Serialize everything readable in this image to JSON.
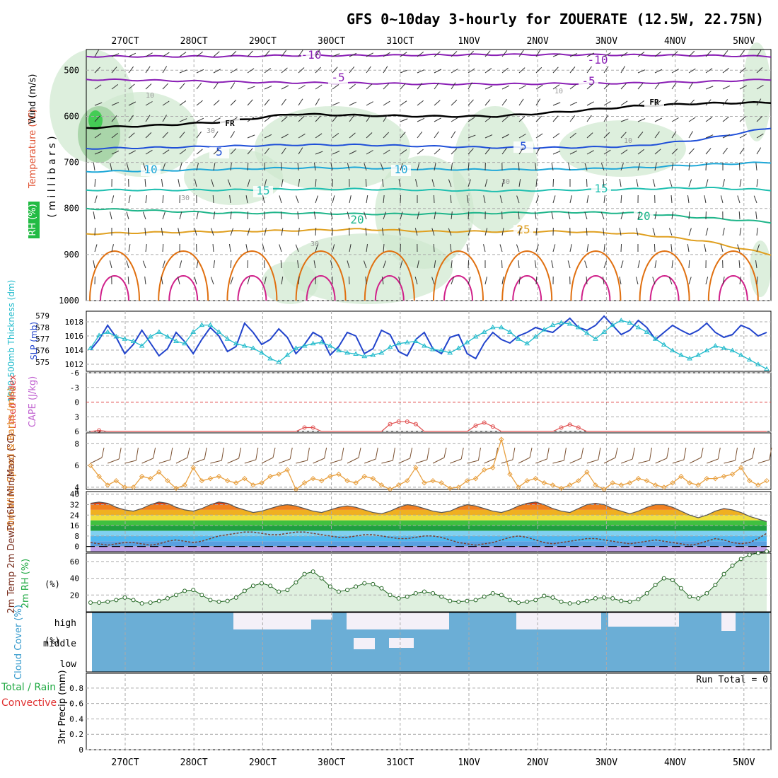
{
  "chart_data": {
    "type": "meteogram",
    "title": "GFS 0~10day 3-hourly for ZOUERATE (12.5W, 22.75N)",
    "x_dates": [
      "27OCT",
      "28OCT",
      "29OCT",
      "30OCT",
      "31OCT",
      "1NOV",
      "2NOV",
      "3NOV",
      "4NOV",
      "5NOV"
    ],
    "colors": {
      "grid": "#aaaaaa",
      "purple": "#8a1fb5",
      "blue": "#1f4fd8",
      "cyan": "#1fa8d8",
      "teal": "#1fbfb0",
      "green": "#1fb58a",
      "orange": "#e0a020",
      "darkorange": "#e07010",
      "magenta": "#d0208a",
      "rh_fill": "#cfe8cf",
      "cloud": "#6baed6",
      "slp": "#2244cc",
      "thick": "#22bbcc",
      "wind10": "#e8a040",
      "barb": "#7a5030"
    },
    "panels": {
      "upper": {
        "ylabel_wind": "Wind (m/s)",
        "ylabel_temp": "Temperature (°C)",
        "ylabel_rh": "RH (%)",
        "ylabel_units": "( m i l l i b a r s )",
        "pressure_ticks": [
          500,
          600,
          700,
          800,
          900,
          1000
        ],
        "pressure_range": [
          455,
          1000
        ],
        "isotherm_labels": [
          "-10",
          "-10",
          "-5",
          "-5",
          "FR",
          "FR",
          "5",
          "5",
          "10",
          "10",
          "15",
          "15",
          "20",
          "20",
          "25"
        ],
        "rh_labels": [
          "10",
          "10",
          "10",
          "30",
          "30",
          "30",
          "30"
        ],
        "isotherms": [
          {
            "label": "-10",
            "color": "#8a1fb5",
            "levels": [
              470,
              470,
              470,
              468,
              468,
              467,
              466,
              466,
              467,
              468,
              470
            ]
          },
          {
            "label": "-5",
            "color": "#8a1fb5",
            "levels": [
              520,
              522,
              525,
              527,
              528,
              530,
              530,
              529,
              528,
              525,
              520
            ]
          },
          {
            "label": "0",
            "color": "#000000",
            "levels": [
              625,
              620,
              612,
              595,
              598,
              600,
              600,
              590,
              578,
              572,
              570
            ]
          },
          {
            "label": "5",
            "color": "#1f4fd8",
            "levels": [
              670,
              668,
              665,
              662,
              662,
              665,
              668,
              668,
              665,
              650,
              625
            ]
          },
          {
            "label": "10",
            "color": "#1fa8d8",
            "levels": [
              720,
              718,
              715,
              712,
              712,
              715,
              716,
              715,
              712,
              705,
              700
            ]
          },
          {
            "label": "15",
            "color": "#1fbfb0",
            "levels": [
              760,
              760,
              760,
              758,
              758,
              760,
              762,
              760,
              758,
              755,
              760
            ]
          },
          {
            "label": "20",
            "color": "#1fb58a",
            "levels": [
              800,
              805,
              810,
              810,
              812,
              812,
              810,
              808,
              810,
              820,
              830
            ]
          },
          {
            "label": "25",
            "color": "#e0a020",
            "levels": [
              855,
              852,
              850,
              848,
              845,
              850,
              850,
              850,
              855,
              870,
              900
            ]
          }
        ]
      },
      "slp": {
        "ylabel_thick": "1000-500mb Thickness (dm)",
        "ylabel_slp": "SLP (mb)",
        "thick_ticks": [
          "579",
          "578",
          "577",
          "576",
          "575"
        ],
        "slp_ticks": [
          "1018",
          "1016",
          "1014",
          "1012"
        ],
        "slp_range": [
          1011,
          1019.5
        ],
        "thick_range": [
          574.2,
          579.4
        ],
        "slp": [
          1014,
          1015.5,
          1017.5,
          1015.8,
          1013.5,
          1014.8,
          1016.8,
          1015,
          1013.2,
          1014.2,
          1016.5,
          1015.2,
          1013.5,
          1015.5,
          1017.2,
          1016,
          1013.8,
          1014.5,
          1017.8,
          1016.5,
          1014.8,
          1015.5,
          1017,
          1015.8,
          1013.5,
          1014.8,
          1016.5,
          1015.8,
          1013.3,
          1014.5,
          1016.5,
          1016,
          1013.5,
          1014.2,
          1016.8,
          1016.2,
          1013.8,
          1013.2,
          1015.5,
          1016.5,
          1014.2,
          1013.5,
          1015.8,
          1016.2,
          1013.5,
          1012.8,
          1015,
          1016.5,
          1015.5,
          1015,
          1016,
          1016.5,
          1017.2,
          1016.8,
          1016.5,
          1017.5,
          1018.5,
          1017.2,
          1016.8,
          1017.5,
          1018.8,
          1017.5,
          1016.2,
          1016.8,
          1018.2,
          1017.2,
          1015.5,
          1016.5,
          1017.5,
          1016.8,
          1016.2,
          1016.8,
          1017.8,
          1016.5,
          1015.8,
          1016.2,
          1017.5,
          1017,
          1016,
          1016.5
        ],
        "thick": [
          576.2,
          577.3,
          577.6,
          577.2,
          577.0,
          576.8,
          576.4,
          577.2,
          577.6,
          577.2,
          576.8,
          576.6,
          577.6,
          578.2,
          578.2,
          577.6,
          577.0,
          576.6,
          576.4,
          576.2,
          575.8,
          575.3,
          575.0,
          575.6,
          576.2,
          576.4,
          576.6,
          576.7,
          576.4,
          576.0,
          575.8,
          575.7,
          575.5,
          575.6,
          575.8,
          576.3,
          576.6,
          576.7,
          576.8,
          576.4,
          576.1,
          576.0,
          575.8,
          576.2,
          576.7,
          577.2,
          577.6,
          578.0,
          578.0,
          577.6,
          577.0,
          576.6,
          577.2,
          577.8,
          578.2,
          578.4,
          578.3,
          578.0,
          577.5,
          577.0,
          577.6,
          578.2,
          578.6,
          578.4,
          578.0,
          577.6,
          577.0,
          576.5,
          576.0,
          575.6,
          575.3,
          575.6,
          576.0,
          576.4,
          576.2,
          576.0,
          575.6,
          575.2,
          574.8,
          574.4
        ]
      },
      "cape": {
        "ylabel_li": "Lifted Index",
        "ylabel_cape": "CAPE (J/kg)",
        "ticks": [
          "-6",
          "-3",
          "0",
          "3",
          "6"
        ],
        "li_range": [
          -6,
          6
        ],
        "li": [
          6,
          5.8,
          6,
          6,
          6,
          6,
          6,
          6,
          6,
          6,
          6,
          6,
          6,
          6,
          6,
          6,
          6,
          6,
          6,
          6,
          6,
          6,
          6,
          6,
          6,
          5.2,
          5.2,
          6,
          6,
          6,
          6,
          6,
          6,
          6,
          6,
          4.5,
          4.0,
          4.0,
          4.5,
          6,
          6,
          6,
          6,
          6,
          6,
          4.8,
          4.2,
          5.0,
          6,
          6,
          6,
          6,
          6,
          6,
          6,
          5.2,
          4.6,
          5.2,
          6,
          6,
          6,
          6,
          6,
          6,
          6,
          6,
          6,
          6,
          6,
          6,
          6,
          6,
          6,
          6,
          6,
          6,
          6,
          6,
          6,
          6
        ]
      },
      "wind10": {
        "ylabel": "10m Wind Speed & Barbs (m/s)",
        "ticks": [
          "8",
          "6",
          "4"
        ],
        "range": [
          3.8,
          9
        ],
        "speed": [
          6,
          5,
          4.2,
          4.6,
          4.0,
          4.0,
          5.0,
          4.8,
          5.4,
          4.6,
          3.9,
          4.2,
          5.8,
          4.6,
          4.8,
          5.0,
          4.6,
          4.4,
          4.8,
          4.2,
          4.4,
          5.0,
          5.2,
          5.6,
          3.8,
          4.4,
          4.8,
          4.6,
          5.0,
          5.2,
          4.6,
          4.4,
          5.0,
          4.8,
          4.2,
          3.8,
          4.2,
          4.6,
          5.8,
          4.4,
          4.6,
          4.4,
          3.9,
          4.0,
          4.6,
          4.8,
          5.6,
          5.8,
          8.4,
          5.2,
          4.0,
          4.6,
          4.8,
          4.4,
          4.2,
          3.9,
          4.2,
          4.6,
          5.4,
          4.2,
          3.8,
          4.4,
          4.2,
          4.4,
          4.8,
          4.6,
          4.2,
          4.0,
          4.4,
          5.0,
          4.4,
          4.2,
          4.8,
          4.8,
          5.0,
          5.2,
          5.8,
          4.6,
          4.2,
          4.6
        ]
      },
      "temp2m": {
        "ylabel": "2m Temp 2m DewPt (6hr Min/Max) (°C)",
        "ticks": [
          "40",
          "32",
          "24",
          "16",
          "8",
          "0"
        ],
        "range": [
          -4,
          42
        ],
        "temp": [
          33,
          34,
          33,
          30,
          28,
          27,
          29,
          32,
          34,
          33,
          30,
          28,
          27,
          29,
          32,
          34,
          33,
          30,
          28,
          26,
          27,
          29,
          31,
          32,
          31,
          29,
          27,
          26,
          28,
          30,
          31,
          30,
          28,
          26,
          25,
          27,
          30,
          32,
          31,
          29,
          27,
          26,
          27,
          30,
          32,
          31,
          29,
          27,
          26,
          28,
          31,
          33,
          34,
          32,
          29,
          27,
          26,
          29,
          32,
          33,
          32,
          29,
          27,
          25,
          27,
          30,
          32,
          32,
          30,
          27,
          24,
          22,
          24,
          27,
          29,
          28,
          26,
          23,
          21,
          19
        ],
        "dewpt": [
          3,
          2,
          1,
          2,
          3,
          3,
          2,
          1,
          2,
          4,
          5,
          4,
          3,
          4,
          6,
          8,
          9,
          10,
          11,
          11,
          10,
          9,
          9,
          10,
          11,
          11,
          10,
          9,
          8,
          7,
          7,
          8,
          9,
          9,
          8,
          7,
          6,
          6,
          7,
          8,
          8,
          7,
          5,
          3,
          2,
          1,
          2,
          3,
          5,
          7,
          8,
          7,
          5,
          3,
          2,
          3,
          4,
          5,
          6,
          6,
          5,
          4,
          3,
          2,
          3,
          4,
          5,
          4,
          3,
          2,
          1,
          2,
          4,
          6,
          5,
          3,
          2,
          3,
          6,
          10
        ]
      },
      "rh2m": {
        "ylabel": "2m RH (%)",
        "ticks": [
          "60",
          "40",
          "20"
        ],
        "range": [
          0,
          70
        ],
        "rh": [
          11,
          11,
          12,
          14,
          17,
          14,
          10,
          11,
          13,
          16,
          20,
          25,
          26,
          20,
          14,
          12,
          13,
          17,
          25,
          31,
          34,
          31,
          24,
          26,
          35,
          45,
          48,
          40,
          30,
          24,
          26,
          30,
          34,
          33,
          28,
          20,
          16,
          18,
          22,
          24,
          22,
          18,
          13,
          12,
          13,
          14,
          18,
          22,
          20,
          14,
          11,
          12,
          14,
          19,
          17,
          12,
          10,
          11,
          13,
          16,
          17,
          16,
          13,
          12,
          15,
          22,
          32,
          40,
          38,
          28,
          18,
          16,
          22,
          32,
          45,
          55,
          63,
          68,
          70,
          72
        ]
      },
      "cloud": {
        "ylabel": "Cloud Cover (%)",
        "labels": [
          "high",
          "middle",
          "low"
        ],
        "run_total": "Run Total = 0"
      },
      "precip": {
        "ylabel_main": "3hr Precip (mm)",
        "ylabel_total": "Total / Rain",
        "ylabel_conv": "Convective",
        "ticks": [
          "0.8",
          "0.6",
          "0.4",
          "0.2",
          "0"
        ],
        "values": []
      }
    }
  }
}
